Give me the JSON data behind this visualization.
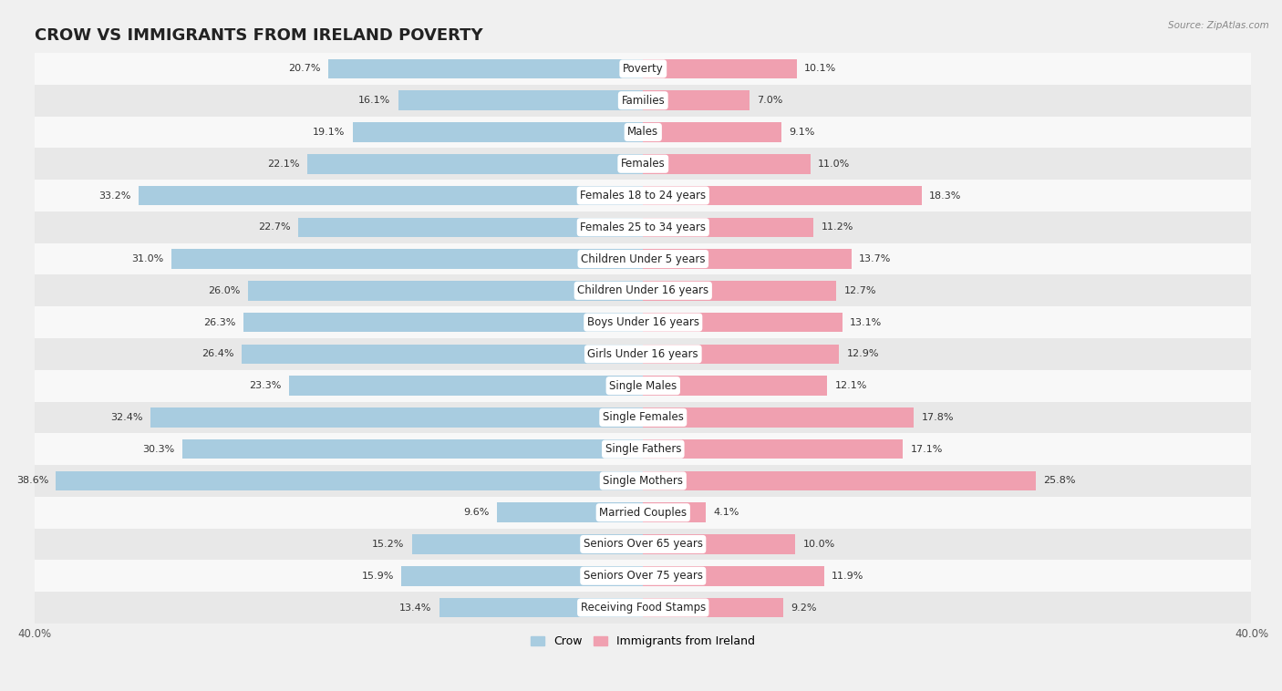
{
  "title": "CROW VS IMMIGRANTS FROM IRELAND POVERTY",
  "source": "Source: ZipAtlas.com",
  "categories": [
    "Poverty",
    "Families",
    "Males",
    "Females",
    "Females 18 to 24 years",
    "Females 25 to 34 years",
    "Children Under 5 years",
    "Children Under 16 years",
    "Boys Under 16 years",
    "Girls Under 16 years",
    "Single Males",
    "Single Females",
    "Single Fathers",
    "Single Mothers",
    "Married Couples",
    "Seniors Over 65 years",
    "Seniors Over 75 years",
    "Receiving Food Stamps"
  ],
  "crow_values": [
    20.7,
    16.1,
    19.1,
    22.1,
    33.2,
    22.7,
    31.0,
    26.0,
    26.3,
    26.4,
    23.3,
    32.4,
    30.3,
    38.6,
    9.6,
    15.2,
    15.9,
    13.4
  ],
  "ireland_values": [
    10.1,
    7.0,
    9.1,
    11.0,
    18.3,
    11.2,
    13.7,
    12.7,
    13.1,
    12.9,
    12.1,
    17.8,
    17.1,
    25.8,
    4.1,
    10.0,
    11.9,
    9.2
  ],
  "crow_color": "#a8cce0",
  "ireland_color": "#f0a0b0",
  "axis_limit": 40.0,
  "bar_height": 0.62,
  "background_color": "#f0f0f0",
  "row_alt_color": "#e8e8e8",
  "row_main_color": "#f8f8f8",
  "legend_crow": "Crow",
  "legend_ireland": "Immigrants from Ireland",
  "title_fontsize": 13,
  "label_fontsize": 8.5,
  "value_fontsize": 8.0,
  "tick_fontsize": 8.5
}
